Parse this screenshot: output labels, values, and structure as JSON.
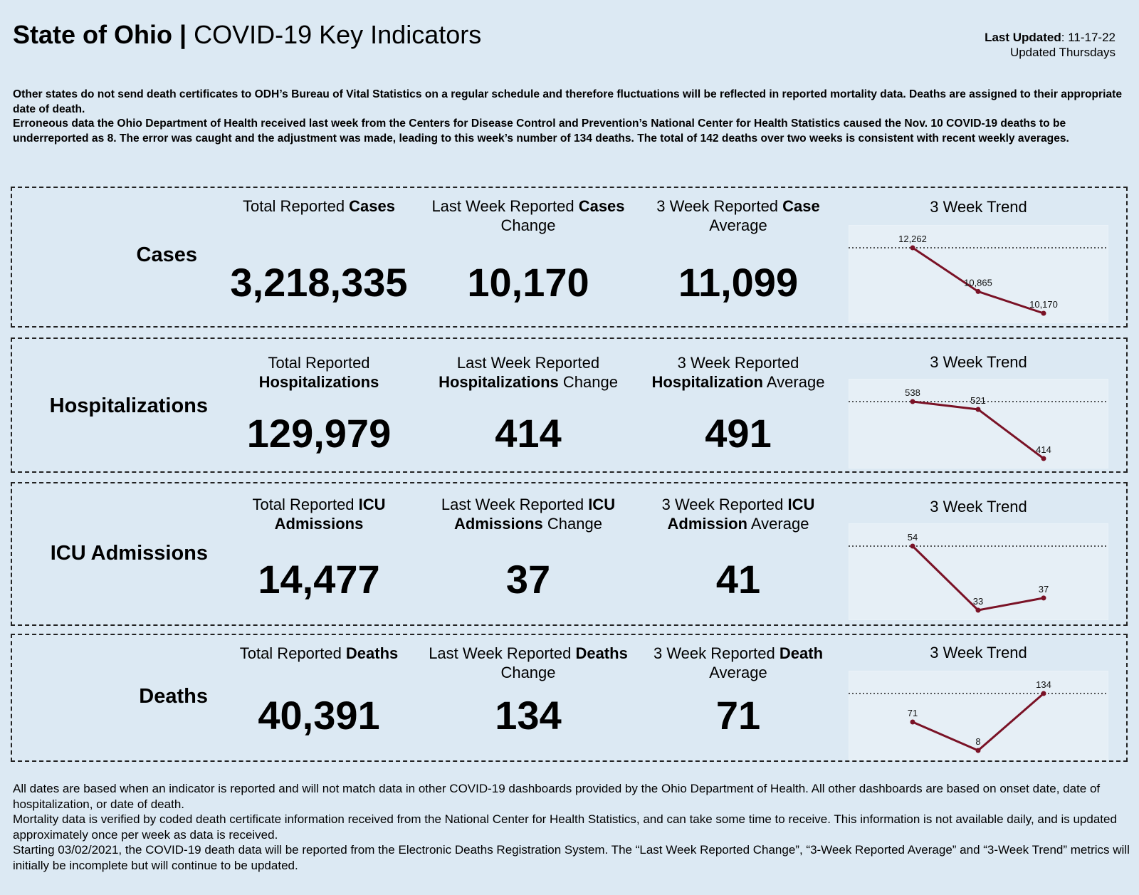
{
  "header": {
    "title_bold": "State of Ohio |",
    "title_rest": " COVID-19 Key Indicators"
  },
  "updated": {
    "label": "Last Updated",
    "date": ": 11-17-22",
    "frequency": "Updated Thursdays"
  },
  "note": [
    "Other states do not send death certificates to ODH’s Bureau of Vital Statistics on a regular schedule and therefore fluctuations will be reflected in reported mortality data. Deaths are assigned to their appropriate date of death.",
    "Erroneous data the Ohio Department of Health received last week from the Centers for Disease Control and Prevention’s National Center for Health Statistics caused the Nov. 10 COVID-19 deaths to be underreported as 8. The error was caught and the adjustment was made, leading to this week’s number of 134 deaths. The total of 142 deaths over two weeks is consistent with recent weekly averages."
  ],
  "colors": {
    "line": "#7a1226",
    "background": "#dce9f3"
  },
  "rows": [
    {
      "label": "Cases",
      "heads": [
        {
          "pre": "Total Reported ",
          "bold": "Cases",
          "post": ""
        },
        {
          "pre": "Last Week Reported ",
          "bold": "Cases",
          "post": " Change"
        },
        {
          "pre": "3 Week Reported ",
          "bold": "Case",
          "post": " Average"
        }
      ],
      "values": [
        "3,218,335",
        "10,170",
        "11,099"
      ],
      "trend_title": "3 Week Trend"
    },
    {
      "label": "Hospitalizations",
      "heads": [
        {
          "pre": "Total Reported ",
          "bold": "Hospitalizations",
          "post": ""
        },
        {
          "pre": "Last Week Reported ",
          "bold": "Hospitalizations",
          "post": " Change"
        },
        {
          "pre": "3 Week Reported ",
          "bold": "Hospitalization",
          "post": " Average"
        }
      ],
      "values": [
        "129,979",
        "414",
        "491"
      ],
      "trend_title": "3 Week Trend"
    },
    {
      "label": "ICU Admissions",
      "heads": [
        {
          "pre": "Total Reported ",
          "bold": "ICU Admissions",
          "post": ""
        },
        {
          "pre": "Last Week Reported ",
          "bold": "ICU Admissions",
          "post": " Change"
        },
        {
          "pre": "3 Week Reported ",
          "bold": "ICU Admission",
          "post": " Average"
        }
      ],
      "values": [
        "14,477",
        "37",
        "41"
      ],
      "trend_title": "3 Week Trend"
    },
    {
      "label": "Deaths",
      "heads": [
        {
          "pre": "Total Reported ",
          "bold": "Deaths",
          "post": ""
        },
        {
          "pre": "Last Week Reported ",
          "bold": "Deaths",
          "post": " Change"
        },
        {
          "pre": "3 Week Reported ",
          "bold": "Death",
          "post": " Average"
        }
      ],
      "values": [
        "40,391",
        "134",
        "71"
      ],
      "trend_title": "3 Week Trend"
    }
  ],
  "chart_data": [
    {
      "type": "line",
      "title": "3 Week Trend",
      "series": [
        {
          "name": "Cases",
          "values": [
            12262,
            10865,
            10170
          ],
          "labels": [
            "12,262",
            "10,865",
            "10,170"
          ]
        }
      ],
      "reference_line": 12262
    },
    {
      "type": "line",
      "title": "3 Week Trend",
      "series": [
        {
          "name": "Hospitalizations",
          "values": [
            538,
            521,
            414
          ],
          "labels": [
            "538",
            "521",
            "414"
          ]
        }
      ],
      "reference_line": 538
    },
    {
      "type": "line",
      "title": "3 Week Trend",
      "series": [
        {
          "name": "ICU Admissions",
          "values": [
            54,
            33,
            37
          ],
          "labels": [
            "54",
            "33",
            "37"
          ]
        }
      ],
      "reference_line": 54
    },
    {
      "type": "line",
      "title": "3 Week Trend",
      "series": [
        {
          "name": "Deaths",
          "values": [
            71,
            8,
            134
          ],
          "labels": [
            "71",
            "8",
            "134"
          ]
        }
      ],
      "reference_line": 134
    }
  ],
  "footer": [
    "All dates are based when an indicator is reported and will not match data in other COVID-19 dashboards provided by the Ohio Department of Health. All other dashboards are based on onset date, date of hospitalization, or date of death.",
    "Mortality data is verified by coded death certificate information received from the National Center for Health Statistics, and can take some time to receive. This information is not available daily, and is updated approximately once per week as data is received.",
    "Starting 03/02/2021, the COVID-19 death data will be reported from the Electronic Deaths Registration System. The “Last Week Reported Change”, “3-Week Reported Average” and “3-Week Trend” metrics will initially be incomplete but will continue to be updated."
  ]
}
